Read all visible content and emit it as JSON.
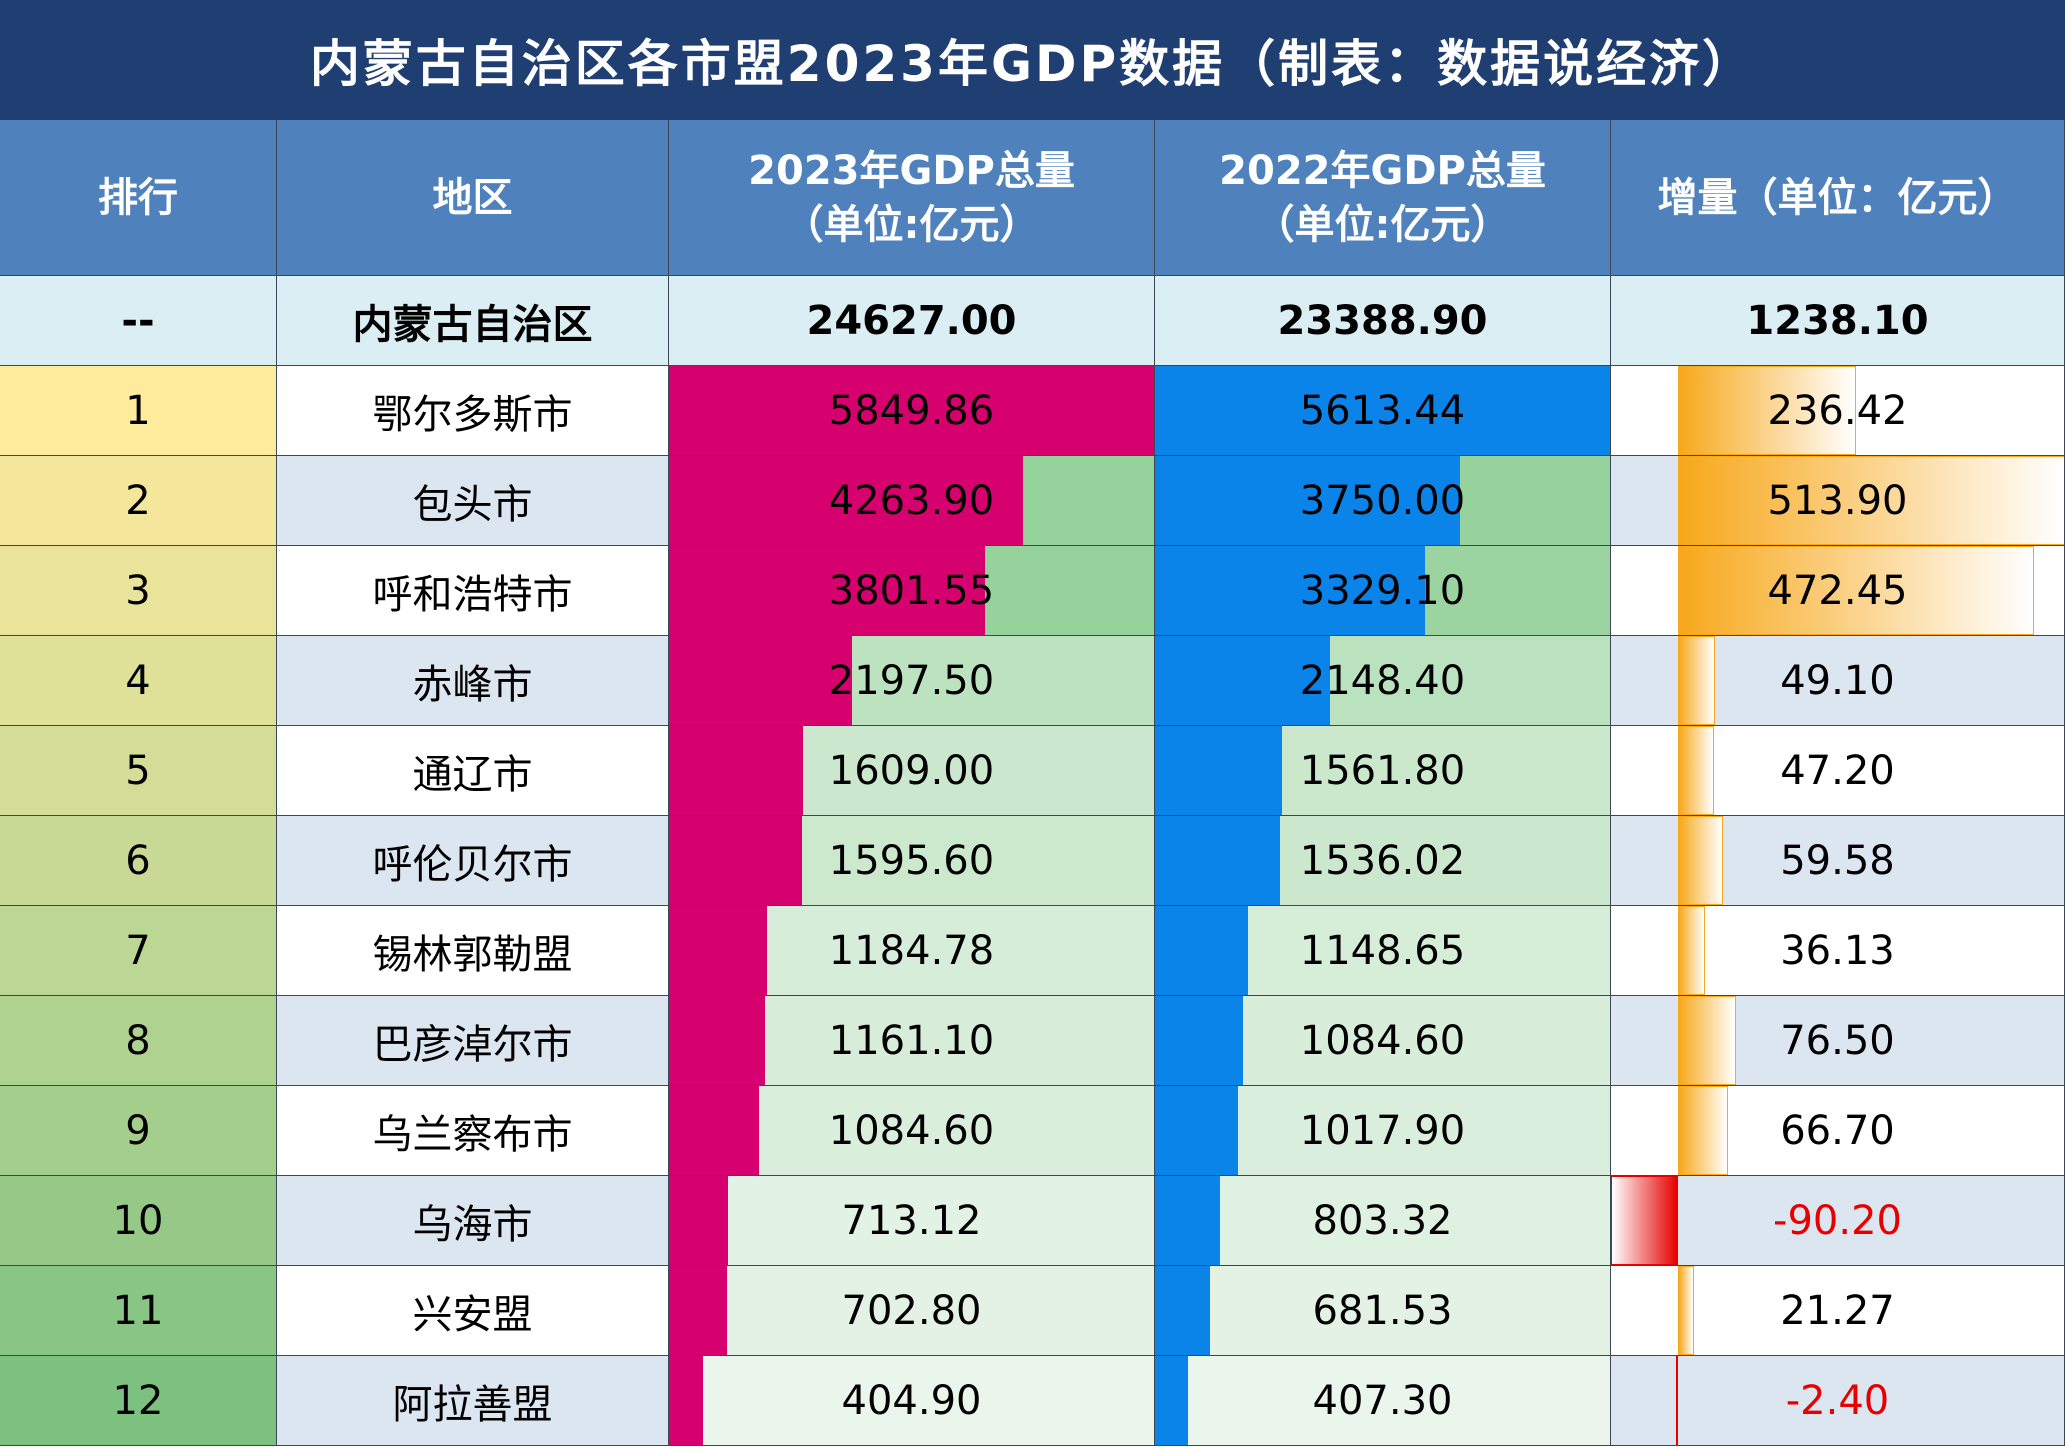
{
  "title": "内蒙古自治区各市盟2023年GDP数据（制表：数据说经济）",
  "headers": {
    "rank": "排行",
    "region": "地区",
    "gdp2023_line1": "2023年GDP总量",
    "gdp2023_line2": "（单位:亿元）",
    "gdp2022_line1": "2022年GDP总量",
    "gdp2022_line2": "（单位:亿元）",
    "increase": "增量（单位：亿元）"
  },
  "total_row": {
    "rank": "--",
    "region": "内蒙古自治区",
    "gdp2023": "24627.00",
    "gdp2022": "23388.90",
    "increase": "1238.10"
  },
  "colors": {
    "title_bg": "#1f3e72",
    "header_bg": "#4f81bd",
    "bar_2023": "#d6006f",
    "bar_2022": "#0a84e8",
    "bar_increase": "#f7a81b",
    "bar_decrease": "#e60000",
    "negative_text": "#e60000"
  },
  "chart_data": {
    "type": "table",
    "columns": [
      "排行",
      "地区",
      "2023年GDP总量（单位:亿元）",
      "2022年GDP总量（单位:亿元）",
      "增量（单位：亿元）"
    ],
    "rows": [
      {
        "rank": "1",
        "region": "鄂尔多斯市",
        "gdp2023": 5849.86,
        "gdp2023_text": "5849.86",
        "gdp2022": 5613.44,
        "gdp2022_text": "5613.44",
        "increase": 236.42,
        "increase_text": "236.42"
      },
      {
        "rank": "2",
        "region": "包头市",
        "gdp2023": 4263.9,
        "gdp2023_text": "4263.90",
        "gdp2022": 3750.0,
        "gdp2022_text": "3750.00",
        "increase": 513.9,
        "increase_text": "513.90"
      },
      {
        "rank": "3",
        "region": "呼和浩特市",
        "gdp2023": 3801.55,
        "gdp2023_text": "3801.55",
        "gdp2022": 3329.1,
        "gdp2022_text": "3329.10",
        "increase": 472.45,
        "increase_text": "472.45"
      },
      {
        "rank": "4",
        "region": "赤峰市",
        "gdp2023": 2197.5,
        "gdp2023_text": "2197.50",
        "gdp2022": 2148.4,
        "gdp2022_text": "2148.40",
        "increase": 49.1,
        "increase_text": "49.10"
      },
      {
        "rank": "5",
        "region": "通辽市",
        "gdp2023": 1609.0,
        "gdp2023_text": "1609.00",
        "gdp2022": 1561.8,
        "gdp2022_text": "1561.80",
        "increase": 47.2,
        "increase_text": "47.20"
      },
      {
        "rank": "6",
        "region": "呼伦贝尔市",
        "gdp2023": 1595.6,
        "gdp2023_text": "1595.60",
        "gdp2022": 1536.02,
        "gdp2022_text": "1536.02",
        "increase": 59.58,
        "increase_text": "59.58"
      },
      {
        "rank": "7",
        "region": "锡林郭勒盟",
        "gdp2023": 1184.78,
        "gdp2023_text": "1184.78",
        "gdp2022": 1148.65,
        "gdp2022_text": "1148.65",
        "increase": 36.13,
        "increase_text": "36.13"
      },
      {
        "rank": "8",
        "region": "巴彦淖尔市",
        "gdp2023": 1161.1,
        "gdp2023_text": "1161.10",
        "gdp2022": 1084.6,
        "gdp2022_text": "1084.60",
        "increase": 76.5,
        "increase_text": "76.50"
      },
      {
        "rank": "9",
        "region": "乌兰察布市",
        "gdp2023": 1084.6,
        "gdp2023_text": "1084.60",
        "gdp2022": 1017.9,
        "gdp2022_text": "1017.90",
        "increase": 66.7,
        "increase_text": "66.70"
      },
      {
        "rank": "10",
        "region": "乌海市",
        "gdp2023": 713.12,
        "gdp2023_text": "713.12",
        "gdp2022": 803.32,
        "gdp2022_text": "803.32",
        "increase": -90.2,
        "increase_text": "-90.20"
      },
      {
        "rank": "11",
        "region": "兴安盟",
        "gdp2023": 702.8,
        "gdp2023_text": "702.80",
        "gdp2022": 681.53,
        "gdp2022_text": "681.53",
        "increase": 21.27,
        "increase_text": "21.27"
      },
      {
        "rank": "12",
        "region": "阿拉善盟",
        "gdp2023": 404.9,
        "gdp2023_text": "404.90",
        "gdp2022": 407.3,
        "gdp2022_text": "407.30",
        "increase": -2.4,
        "increase_text": "-2.40"
      }
    ]
  }
}
